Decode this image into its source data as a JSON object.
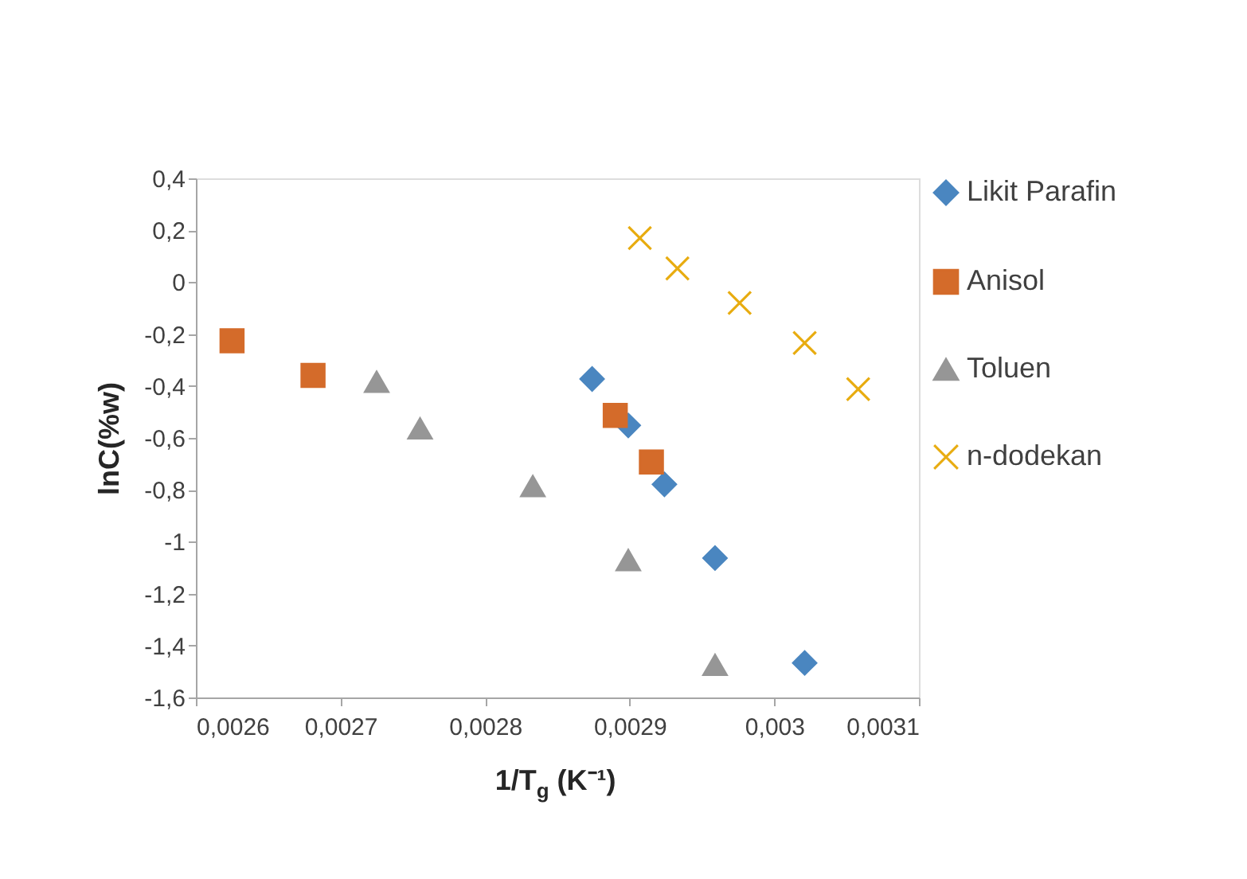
{
  "chart_data": {
    "type": "scatter",
    "xlabel": "1/T$_{g}$ (K⁻¹)",
    "ylabel": "lnC(%w)",
    "xlim": [
      0.0026,
      0.0031
    ],
    "xticks": [
      {
        "value": 0.0026,
        "label": "0,0026"
      },
      {
        "value": 0.0027,
        "label": "0,0027"
      },
      {
        "value": 0.0028,
        "label": "0,0028"
      },
      {
        "value": 0.0029,
        "label": "0,0029"
      },
      {
        "value": 0.003,
        "label": "0,003"
      },
      {
        "value": 0.0031,
        "label": "0,0031"
      }
    ],
    "ylim": [
      -1.6,
      0.4
    ],
    "yticks": [
      {
        "value": -1.6,
        "label": "-1,6"
      },
      {
        "value": -1.4,
        "label": "-1,4"
      },
      {
        "value": -1.2,
        "label": "-1,2"
      },
      {
        "value": -1,
        "label": "-1"
      },
      {
        "value": -0.8,
        "label": "-0,8"
      },
      {
        "value": -0.6,
        "label": "-0,6"
      },
      {
        "value": -0.4,
        "label": "-0,4"
      },
      {
        "value": -0.2,
        "label": "-0,2"
      },
      0,
      {
        "value": 0.2,
        "label": "0,2"
      },
      {
        "value": 0.4,
        "label": "0,4"
      }
    ],
    "grid": false,
    "legend": "right",
    "series": [
      {
        "name": "Likit Parafin",
        "color": "#4a86c0",
        "marker": "diamond",
        "x": [
          0.002874,
          0.002899,
          0.002924,
          0.002959,
          0.003021
        ],
        "values": [
          -0.373,
          -0.552,
          -0.779,
          -1.063,
          -1.467
        ]
      },
      {
        "name": "Anisol",
        "color": "#d46b2a",
        "marker": "square",
        "x": [
          0.002625,
          0.002681,
          0.00289,
          0.002915
        ],
        "values": [
          -0.226,
          -0.359,
          -0.513,
          -0.693
        ]
      },
      {
        "name": "Toluen",
        "color": "#969696",
        "marker": "triangle",
        "x": [
          0.002725,
          0.002755,
          0.002833,
          0.002899,
          0.002959
        ],
        "values": [
          -0.384,
          -0.564,
          -0.786,
          -1.071,
          -1.475
        ]
      },
      {
        "name": "n-dodekan",
        "color": "#e8ac10",
        "marker": "cross",
        "x": [
          0.002907,
          0.002933,
          0.002976,
          0.003021,
          0.003058
        ],
        "values": [
          0.17,
          0.053,
          -0.08,
          -0.234,
          -0.412
        ]
      }
    ]
  }
}
